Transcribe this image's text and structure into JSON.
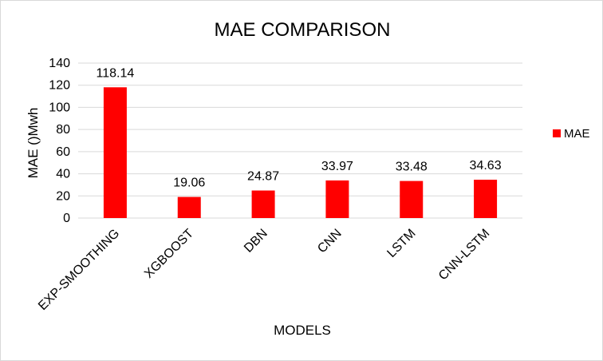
{
  "chart_data": {
    "type": "bar",
    "title": "MAE COMPARISON",
    "xlabel": "MODELS",
    "ylabel": "MAE ()Mwh",
    "categories": [
      "EXP-SMOOTHING",
      "XGBOOST",
      "DBN",
      "CNN",
      "LSTM",
      "CNN-LSTM"
    ],
    "series": [
      {
        "name": "MAE",
        "values": [
          118.14,
          19.06,
          24.87,
          33.97,
          33.48,
          34.63
        ]
      }
    ],
    "data_labels": [
      "118.14",
      "19.06",
      "24.87",
      "33.97",
      "33.48",
      "34.63"
    ],
    "y_ticks": [
      "0",
      "20",
      "40",
      "60",
      "80",
      "100",
      "120",
      "140"
    ],
    "ylim": [
      0,
      140
    ],
    "grid": true,
    "legend_position": "right",
    "bar_color": "#ff0000",
    "grid_color": "#d9d9d9"
  }
}
